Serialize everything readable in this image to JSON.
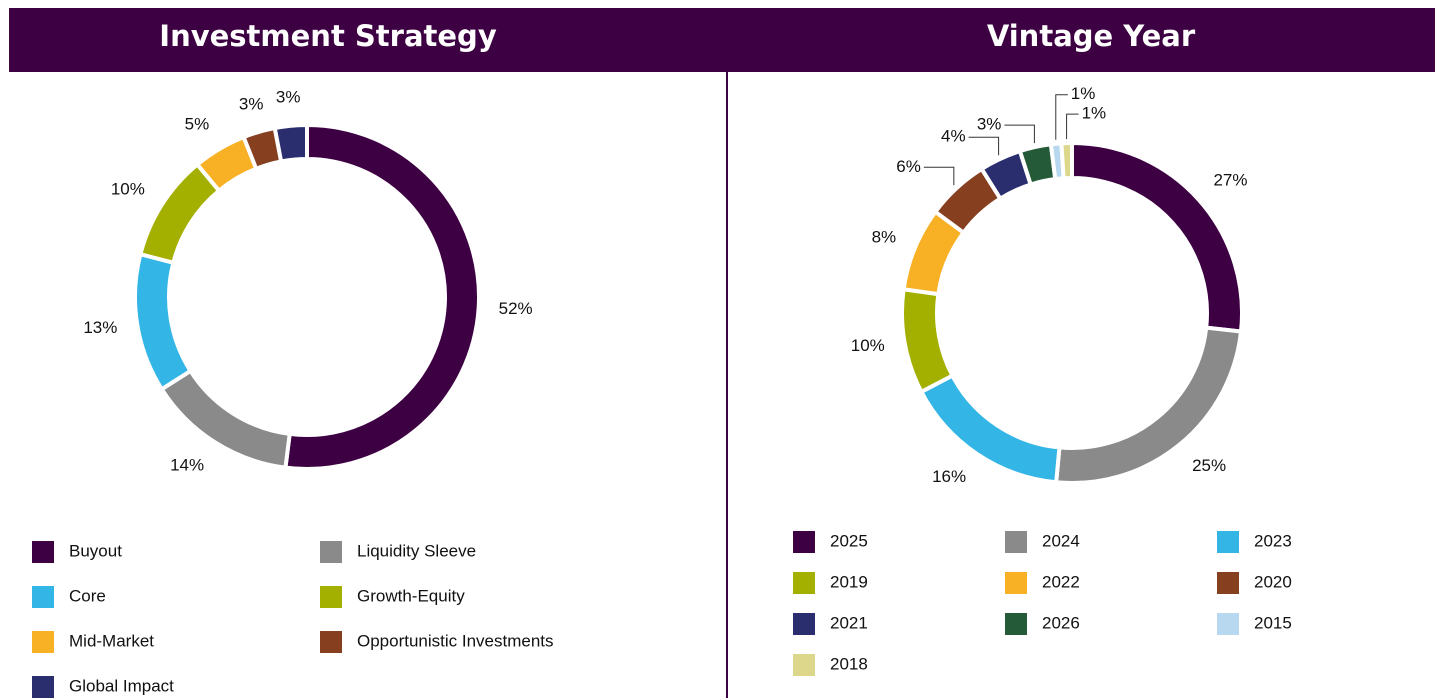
{
  "chart_data": [
    {
      "type": "donut",
      "title": "Investment Strategy",
      "categories": [
        "Buyout",
        "Liquidity Sleeve",
        "Core",
        "Growth-Equity",
        "Mid-Market",
        "Opportunistic Investments",
        "Global Impact"
      ],
      "values": [
        52,
        14,
        13,
        10,
        5,
        3,
        3
      ],
      "value_labels": [
        "52%",
        "14%",
        "13%",
        "10%",
        "5%",
        "3%",
        "3%"
      ],
      "colors": [
        "#3d0042",
        "#8a8a8a",
        "#33b5e6",
        "#a4b000",
        "#f8b024",
        "#863f1f",
        "#2a2e6e"
      ]
    },
    {
      "type": "donut",
      "title": "Vintage Year",
      "categories": [
        "2025",
        "2024",
        "2023",
        "2019",
        "2022",
        "2020",
        "2021",
        "2026",
        "2015",
        "2018"
      ],
      "values": [
        27,
        25,
        16,
        10,
        8,
        6,
        4,
        3,
        1,
        1
      ],
      "value_labels": [
        "27%",
        "25%",
        "16%",
        "10%",
        "8%",
        "6%",
        "4%",
        "3%",
        "1%",
        "1%"
      ],
      "colors": [
        "#3d0042",
        "#8a8a8a",
        "#33b5e6",
        "#a4b000",
        "#f8b024",
        "#863f1f",
        "#2a2e6e",
        "#245a38",
        "#b7d8ee",
        "#dcd78a"
      ]
    }
  ]
}
